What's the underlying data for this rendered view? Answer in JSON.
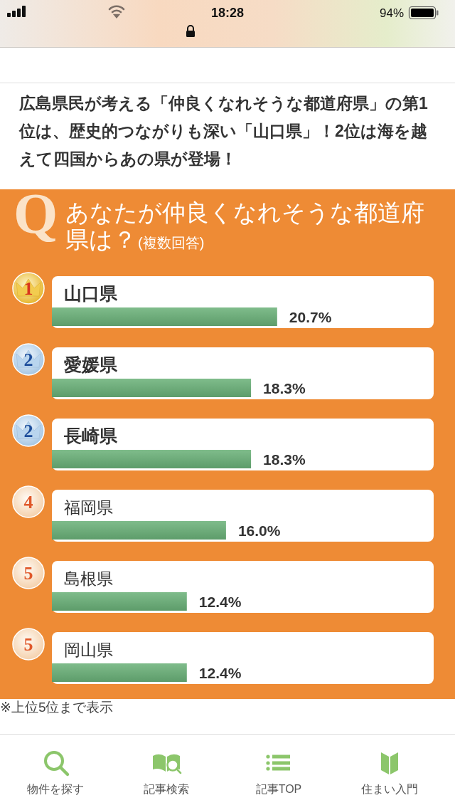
{
  "chart_data": {
    "type": "bar",
    "orientation": "horizontal",
    "title": "広島県民が考える「仲良くなれそうな都道府県」の第1位は、歴史的つながりも深い「山口県」！2位は海を越えて四国からあの県が登場！",
    "subtitle": "あなたが仲良くなれそうな都道府県は？(複数回答)",
    "categories": [
      "山口県",
      "愛媛県",
      "長崎県",
      "福岡県",
      "島根県",
      "岡山県"
    ],
    "values": [
      20.7,
      18.3,
      18.3,
      16.0,
      12.4,
      12.4
    ],
    "value_labels": [
      "20.7%",
      "18.3%",
      "18.3%",
      "16.0%",
      "12.4%",
      "12.4%"
    ],
    "color": "#6ab178",
    "annotations": [
      "Q",
      "※上位5位まで表示",
      "18:28",
      "94%",
      "物件を探す",
      "記事検索",
      "記事TOP",
      "住まい入門",
      "1",
      "2",
      "2",
      "4",
      "5",
      "5"
    ]
  }
}
